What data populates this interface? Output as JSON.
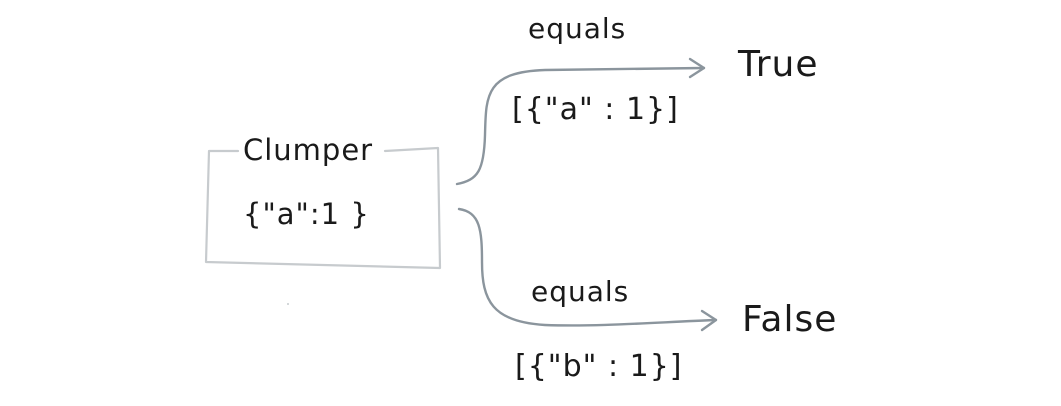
{
  "box": {
    "title": "Clumper",
    "content": "{\"a\":1 }"
  },
  "edges": [
    {
      "label": "equals",
      "argument": "[{\"a\" : 1}]",
      "result": "True"
    },
    {
      "label": "equals",
      "argument": "[{\"b\" : 1}]",
      "result": "False"
    }
  ],
  "colors": {
    "box_stroke": "#c7cbce",
    "arrow_stroke": "#8b959d",
    "text": "#1a1a1a"
  }
}
